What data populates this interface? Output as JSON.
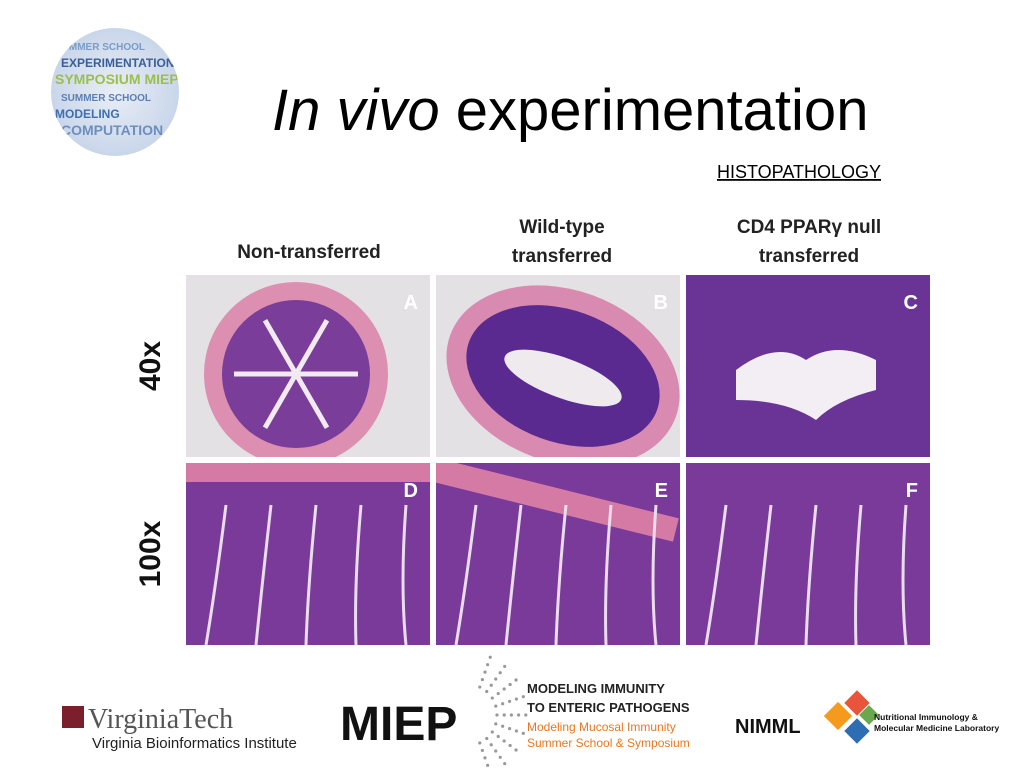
{
  "header": {
    "title_italic": "In vivo",
    "title_rest": "experimentation",
    "subtitle": "HISTOPATHOLOGY",
    "logo_words": [
      "SUMMER SCHOOL",
      "EXPERIMENTATION",
      "SYMPOSIUM MIEP",
      "SUMMER SCHOOL",
      "MODELING",
      "COMPUTATION"
    ]
  },
  "figure": {
    "columns": [
      [
        "Non-transferred"
      ],
      [
        "Wild-type",
        "transferred"
      ],
      [
        "CD4 PPARγ null",
        "transferred"
      ]
    ],
    "rows": [
      "40x",
      "100x"
    ],
    "panels": [
      [
        "A",
        "B",
        "C"
      ],
      [
        "D",
        "E",
        "F"
      ]
    ]
  },
  "footer": {
    "vt_name": "VirginiaTech",
    "vt_institute": "Virginia Bioinformatics Institute",
    "miep_name": "MIEP",
    "miep_lines": [
      "MODELING IMMUNITY",
      "TO ENTERIC PATHOGENS"
    ],
    "miep_sub": [
      "Modeling Mucosal Immunity",
      "Summer School & Symposium"
    ],
    "nimml_name": "NIMML",
    "nimml_lines": [
      "Nutritional Immunology &",
      "Molecular Medicine Laboratory"
    ]
  }
}
